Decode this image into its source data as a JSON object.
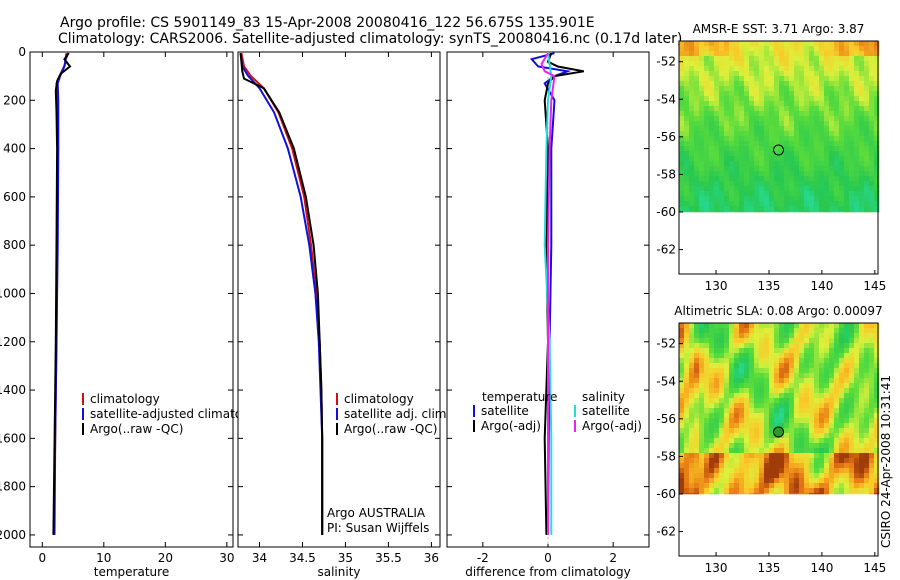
{
  "titles": {
    "line1": "Argo profile: CS 5901149_83 15-Apr-2008 20080416_122 56.675S 135.901E",
    "line2": "Climatology: CARS2006. Satellite-adjusted climatology: synTS_20080416.nc (0.17d later)"
  },
  "stamp": "CSIRO 24-Apr-2008 10:31:41",
  "colors": {
    "climatology": "#d01010",
    "satellite": "#1010dd",
    "argo": "#000000",
    "sal_satellite": "#22dddd",
    "sal_argo": "#ee22ee"
  },
  "chart_data": [
    {
      "type": "line",
      "id": "temperature",
      "xlabel": "temperature",
      "ylabel": "",
      "xlim": [
        -2,
        31
      ],
      "ylim": [
        2050,
        0
      ],
      "xticks": [
        0,
        10,
        20,
        30
      ],
      "xtick_labels": [
        "0",
        "10",
        "20",
        "30"
      ],
      "yticks": [
        0,
        200,
        400,
        600,
        800,
        1000,
        1200,
        1400,
        1600,
        1800,
        2000
      ],
      "ytick_labels": [
        "0",
        "200",
        "400",
        "600",
        "800",
        "1000",
        "1200",
        "1400",
        "1600",
        "1800",
        "2000"
      ],
      "legend": [
        "climatology",
        "satellite-adjusted climatology",
        "Argo(..raw -QC)"
      ],
      "series": [
        {
          "name": "climatology",
          "color": "#d01010",
          "depth": [
            5,
            50,
            100,
            130,
            200,
            400,
            800,
            1200,
            1600,
            2000
          ],
          "values": [
            3.9,
            3.7,
            2.8,
            2.3,
            2.4,
            2.5,
            2.4,
            2.3,
            2.1,
            2.0
          ]
        },
        {
          "name": "satellite-adjusted climatology",
          "color": "#1010dd",
          "depth": [
            5,
            30,
            60,
            100,
            130,
            200,
            400,
            800,
            1200,
            1600,
            2000
          ],
          "values": [
            4.2,
            3.8,
            3.6,
            2.9,
            2.5,
            2.6,
            2.6,
            2.5,
            2.3,
            2.1,
            1.9
          ]
        },
        {
          "name": "Argo(..raw -QC)",
          "color": "#000000",
          "depth": [
            5,
            30,
            60,
            90,
            120,
            160,
            250,
            400,
            800,
            1200,
            1600,
            2000
          ],
          "values": [
            4.3,
            3.6,
            4.5,
            3.0,
            2.4,
            2.2,
            2.3,
            2.4,
            2.3,
            2.2,
            2.0,
            1.8
          ]
        }
      ]
    },
    {
      "type": "line",
      "id": "salinity",
      "xlabel": "salinity",
      "xlim": [
        33.75,
        36.1
      ],
      "ylim": [
        2050,
        0
      ],
      "xticks": [
        34,
        34.5,
        35,
        35.5,
        36
      ],
      "xtick_labels": [
        "34",
        "34.5",
        "35",
        "35.5",
        "36"
      ],
      "legend": [
        "climatology",
        "satellite adj. clim.",
        "Argo(..raw -QC)"
      ],
      "annotation": [
        "Argo AUSTRALIA",
        "PI: Susan Wijffels"
      ],
      "series": [
        {
          "name": "climatology",
          "color": "#d01010",
          "depth": [
            5,
            60,
            100,
            150,
            250,
            400,
            600,
            800,
            1000,
            1200,
            1400,
            1600,
            1800,
            2000
          ],
          "values": [
            33.79,
            33.82,
            33.9,
            34.05,
            34.22,
            34.38,
            34.52,
            34.6,
            34.66,
            34.7,
            34.72,
            34.73,
            34.73,
            34.73
          ]
        },
        {
          "name": "satellite adj. clim.",
          "color": "#1010dd",
          "depth": [
            5,
            60,
            100,
            150,
            250,
            400,
            600,
            800,
            1000,
            1200,
            1400,
            1600,
            1800,
            2000
          ],
          "values": [
            33.78,
            33.8,
            33.87,
            34.0,
            34.17,
            34.33,
            34.48,
            34.58,
            34.65,
            34.69,
            34.71,
            34.73,
            34.73,
            34.73
          ]
        },
        {
          "name": "Argo(..raw -QC)",
          "color": "#000000",
          "depth": [
            5,
            80,
            110,
            150,
            250,
            400,
            600,
            800,
            1000,
            1200,
            1400,
            1600,
            1800,
            2000
          ],
          "values": [
            33.78,
            33.8,
            33.82,
            34.05,
            34.23,
            34.4,
            34.54,
            34.63,
            34.68,
            34.7,
            34.72,
            34.73,
            34.73,
            34.73
          ]
        }
      ]
    },
    {
      "type": "line",
      "id": "difference",
      "xlabel": "difference from climatology",
      "xlim": [
        -3.1,
        3.1
      ],
      "ylim": [
        2050,
        0
      ],
      "xticks": [
        -2,
        0,
        2
      ],
      "xtick_labels": [
        "-2",
        "0",
        "2"
      ],
      "legend_left_title": "temperature",
      "legend_left": [
        "satellite",
        "Argo(-adj)"
      ],
      "legend_right_title": "salinity",
      "legend_right": [
        "satellite",
        "Argo(-adj)"
      ],
      "series": [
        {
          "name": "temperature satellite",
          "color": "#1010dd",
          "depth": [
            5,
            30,
            60,
            80,
            100,
            130,
            200,
            400,
            800,
            1200,
            1600,
            2000
          ],
          "values": [
            0.2,
            -0.5,
            -0.3,
            0.6,
            0.2,
            -0.1,
            0.2,
            0.1,
            0.1,
            0.05,
            0.02,
            0.0
          ]
        },
        {
          "name": "temperature Argo(-adj)",
          "color": "#000000",
          "depth": [
            5,
            40,
            60,
            80,
            100,
            130,
            200,
            400,
            800,
            1200,
            1600,
            2000
          ],
          "values": [
            0.1,
            0.0,
            0.3,
            1.1,
            0.2,
            0.0,
            -0.1,
            0.0,
            -0.05,
            0.0,
            -0.1,
            -0.05
          ]
        },
        {
          "name": "salinity satellite",
          "color": "#22dddd",
          "depth": [
            5,
            50,
            100,
            200,
            400,
            800,
            1200,
            1600,
            2000
          ],
          "values": [
            0.0,
            0.05,
            0.1,
            0.0,
            -0.05,
            -0.1,
            0.05,
            0.1,
            0.1
          ]
        },
        {
          "name": "salinity Argo(-adj)",
          "color": "#ee22ee",
          "depth": [
            5,
            50,
            80,
            100,
            200,
            400,
            800,
            1200,
            1600,
            2000
          ],
          "values": [
            0.0,
            -0.2,
            -0.1,
            0.2,
            0.1,
            0.05,
            0.0,
            0.0,
            0.0,
            0.0
          ]
        }
      ]
    },
    {
      "type": "heatmap",
      "id": "sst_map",
      "title": "AMSR-E SST: 3.71 Argo: 3.87",
      "xlim": [
        126.5,
        145.3
      ],
      "ylim": [
        -63.3,
        -50.9
      ],
      "xticks": [
        130,
        135,
        140,
        145
      ],
      "xtick_labels": [
        "130",
        "135",
        "140",
        "145"
      ],
      "yticks": [
        -52,
        -54,
        -56,
        -58,
        -60,
        -62
      ],
      "ytick_labels": [
        "-52",
        "-54",
        "-56",
        "-58",
        "-60",
        "-62"
      ],
      "data_lat_range": [
        -60,
        -50.9
      ],
      "marker": {
        "lon": 135.9,
        "lat": -56.7
      }
    },
    {
      "type": "heatmap",
      "id": "sla_map",
      "title": "Altimetric SLA: 0.08 Argo: 0.00097",
      "xlim": [
        126.5,
        145.3
      ],
      "ylim": [
        -63.3,
        -50.9
      ],
      "xticks": [
        130,
        135,
        140,
        145
      ],
      "xtick_labels": [
        "130",
        "135",
        "140",
        "145"
      ],
      "yticks": [
        -52,
        -54,
        -56,
        -58,
        -60,
        -62
      ],
      "ytick_labels": [
        "-52",
        "-54",
        "-56",
        "-58",
        "-60",
        "-62"
      ],
      "data_lat_range": [
        -60,
        -50.9
      ],
      "marker": {
        "lon": 135.9,
        "lat": -56.7
      }
    }
  ]
}
